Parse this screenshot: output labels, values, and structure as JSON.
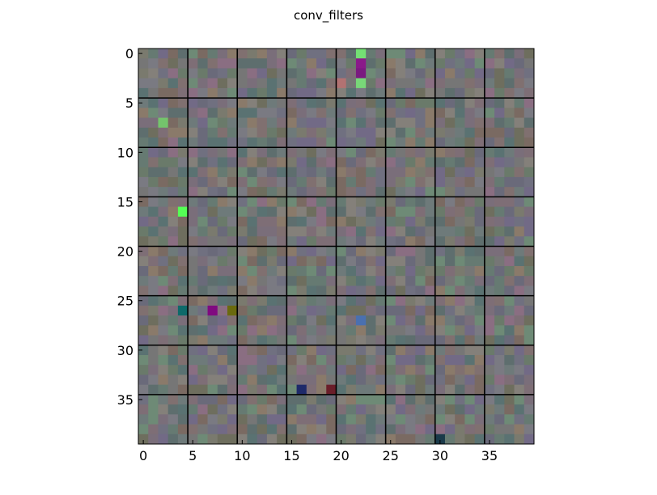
{
  "chart_data": {
    "type": "heatmap",
    "title": "conv_filters",
    "xlabel": "",
    "ylabel": "",
    "x_ticks": [
      "0",
      "5",
      "10",
      "15",
      "20",
      "25",
      "30",
      "35"
    ],
    "y_ticks": [
      "0",
      "5",
      "10",
      "15",
      "20",
      "25",
      "30",
      "35"
    ],
    "xlim": [
      -0.5,
      39.5
    ],
    "ylim": [
      39.5,
      -0.5
    ],
    "grid_rows": 40,
    "grid_cols": 40,
    "filter_grid": [
      8,
      8
    ],
    "filter_size": [
      5,
      5
    ],
    "separator_color": "#000000",
    "base_color": "#7a7a6e",
    "highlighted_pixels": [
      {
        "row": 0,
        "col": 22,
        "color": "#74e074"
      },
      {
        "row": 1,
        "col": 22,
        "color": "#8a1a8a"
      },
      {
        "row": 2,
        "col": 22,
        "color": "#7a1a80"
      },
      {
        "row": 3,
        "col": 22,
        "color": "#78d878"
      },
      {
        "row": 3,
        "col": 20,
        "color": "#b27272"
      },
      {
        "row": 7,
        "col": 2,
        "color": "#74c46c"
      },
      {
        "row": 16,
        "col": 4,
        "color": "#55ff55"
      },
      {
        "row": 26,
        "col": 4,
        "color": "#0e6a6a"
      },
      {
        "row": 26,
        "col": 7,
        "color": "#800a80"
      },
      {
        "row": 26,
        "col": 9,
        "color": "#6a6a0e"
      },
      {
        "row": 27,
        "col": 22,
        "color": "#4a70b0"
      },
      {
        "row": 34,
        "col": 16,
        "color": "#1e2a6a"
      },
      {
        "row": 34,
        "col": 19,
        "color": "#6a1e2a"
      },
      {
        "row": 39,
        "col": 30,
        "color": "#1a3a4a"
      }
    ]
  }
}
